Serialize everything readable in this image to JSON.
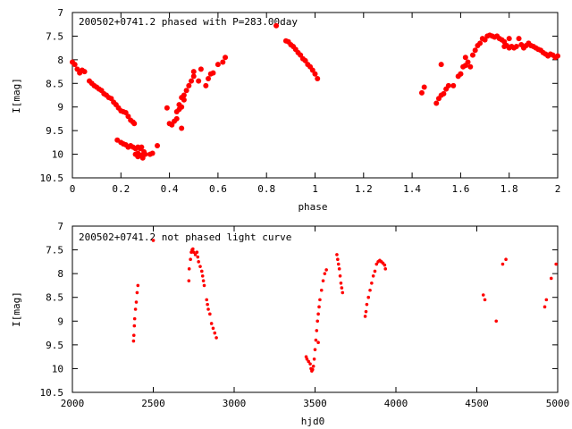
{
  "chart_data": [
    {
      "type": "scatter",
      "title": "200502+0741.2 phased with P=283.00day",
      "xlabel": "phase",
      "ylabel": "I[mag]",
      "xlim": [
        0,
        2
      ],
      "ylim": [
        7,
        10.5
      ],
      "y_inverted": true,
      "xticks": [
        "0",
        "0.2",
        "0.4",
        "0.6",
        "0.8",
        "1",
        "1.2",
        "1.4",
        "1.6",
        "1.8",
        "2"
      ],
      "yticks": [
        "7",
        "7.5",
        "8",
        "8.5",
        "9",
        "9.5",
        "10",
        "10.5"
      ],
      "grid": false,
      "legend": "none",
      "marker_color": "#ff0000",
      "series": [
        {
          "points": [
            [
              0.0,
              8.05
            ],
            [
              0.01,
              8.1
            ],
            [
              0.02,
              8.2
            ],
            [
              0.03,
              8.28
            ],
            [
              0.04,
              8.22
            ],
            [
              0.05,
              8.25
            ],
            [
              0.07,
              8.45
            ],
            [
              0.08,
              8.5
            ],
            [
              0.09,
              8.55
            ],
            [
              0.1,
              8.58
            ],
            [
              0.11,
              8.62
            ],
            [
              0.12,
              8.65
            ],
            [
              0.13,
              8.72
            ],
            [
              0.14,
              8.75
            ],
            [
              0.15,
              8.8
            ],
            [
              0.16,
              8.82
            ],
            [
              0.17,
              8.9
            ],
            [
              0.18,
              8.95
            ],
            [
              0.19,
              9.02
            ],
            [
              0.2,
              9.08
            ],
            [
              0.21,
              9.1
            ],
            [
              0.22,
              9.12
            ],
            [
              0.23,
              9.2
            ],
            [
              0.24,
              9.28
            ],
            [
              0.25,
              9.32
            ],
            [
              0.255,
              9.35
            ],
            [
              0.185,
              9.7
            ],
            [
              0.2,
              9.75
            ],
            [
              0.21,
              9.78
            ],
            [
              0.22,
              9.8
            ],
            [
              0.23,
              9.85
            ],
            [
              0.24,
              9.82
            ],
            [
              0.25,
              9.85
            ],
            [
              0.26,
              9.88
            ],
            [
              0.27,
              9.85
            ],
            [
              0.28,
              9.88
            ],
            [
              0.285,
              9.85
            ],
            [
              0.26,
              10.0
            ],
            [
              0.27,
              10.05
            ],
            [
              0.28,
              10.02
            ],
            [
              0.29,
              10.08
            ],
            [
              0.3,
              10.0
            ],
            [
              0.295,
              9.95
            ],
            [
              0.27,
              9.98
            ],
            [
              0.32,
              10.0
            ],
            [
              0.33,
              9.98
            ],
            [
              0.35,
              9.82
            ],
            [
              0.39,
              9.02
            ],
            [
              0.4,
              9.35
            ],
            [
              0.41,
              9.38
            ],
            [
              0.42,
              9.3
            ],
            [
              0.43,
              9.25
            ],
            [
              0.43,
              9.1
            ],
            [
              0.44,
              9.05
            ],
            [
              0.44,
              8.95
            ],
            [
              0.45,
              9.0
            ],
            [
              0.45,
              8.8
            ],
            [
              0.46,
              8.75
            ],
            [
              0.46,
              8.85
            ],
            [
              0.47,
              8.65
            ],
            [
              0.48,
              8.55
            ],
            [
              0.49,
              8.45
            ],
            [
              0.5,
              8.35
            ],
            [
              0.5,
              8.25
            ],
            [
              0.52,
              8.45
            ],
            [
              0.53,
              8.2
            ],
            [
              0.55,
              8.55
            ],
            [
              0.56,
              8.4
            ],
            [
              0.57,
              8.3
            ],
            [
              0.58,
              8.28
            ],
            [
              0.6,
              8.1
            ],
            [
              0.62,
              8.05
            ],
            [
              0.63,
              7.95
            ],
            [
              0.45,
              9.45
            ],
            [
              0.84,
              7.28
            ],
            [
              0.88,
              7.6
            ],
            [
              0.89,
              7.62
            ],
            [
              0.9,
              7.68
            ],
            [
              0.91,
              7.72
            ],
            [
              0.92,
              7.78
            ],
            [
              0.93,
              7.85
            ],
            [
              0.94,
              7.9
            ],
            [
              0.95,
              7.98
            ],
            [
              0.96,
              8.02
            ],
            [
              0.97,
              8.1
            ],
            [
              0.98,
              8.15
            ],
            [
              0.99,
              8.22
            ],
            [
              1.0,
              8.3
            ],
            [
              1.01,
              8.4
            ],
            [
              1.44,
              8.7
            ],
            [
              1.45,
              8.58
            ],
            [
              1.5,
              8.92
            ],
            [
              1.51,
              8.82
            ],
            [
              1.52,
              8.75
            ],
            [
              1.53,
              8.72
            ],
            [
              1.54,
              8.62
            ],
            [
              1.55,
              8.55
            ],
            [
              1.57,
              8.55
            ],
            [
              1.52,
              8.1
            ],
            [
              1.59,
              8.35
            ],
            [
              1.6,
              8.3
            ],
            [
              1.61,
              8.15
            ],
            [
              1.62,
              8.12
            ],
            [
              1.63,
              8.05
            ],
            [
              1.64,
              8.15
            ],
            [
              1.65,
              7.9
            ],
            [
              1.66,
              7.8
            ],
            [
              1.67,
              7.7
            ],
            [
              1.68,
              7.65
            ],
            [
              1.69,
              7.55
            ],
            [
              1.7,
              7.58
            ],
            [
              1.71,
              7.5
            ],
            [
              1.72,
              7.48
            ],
            [
              1.73,
              7.5
            ],
            [
              1.74,
              7.52
            ],
            [
              1.75,
              7.5
            ],
            [
              1.76,
              7.55
            ],
            [
              1.77,
              7.58
            ],
            [
              1.78,
              7.62
            ],
            [
              1.78,
              7.72
            ],
            [
              1.79,
              7.7
            ],
            [
              1.8,
              7.55
            ],
            [
              1.8,
              7.75
            ],
            [
              1.81,
              7.72
            ],
            [
              1.82,
              7.75
            ],
            [
              1.83,
              7.72
            ],
            [
              1.84,
              7.55
            ],
            [
              1.85,
              7.68
            ],
            [
              1.86,
              7.75
            ],
            [
              1.87,
              7.7
            ],
            [
              1.88,
              7.65
            ],
            [
              1.89,
              7.7
            ],
            [
              1.9,
              7.72
            ],
            [
              1.91,
              7.75
            ],
            [
              1.92,
              7.78
            ],
            [
              1.93,
              7.8
            ],
            [
              1.94,
              7.85
            ],
            [
              1.95,
              7.88
            ],
            [
              1.96,
              7.92
            ],
            [
              1.97,
              7.88
            ],
            [
              1.98,
              7.9
            ],
            [
              1.99,
              7.95
            ],
            [
              2.0,
              7.92
            ],
            [
              1.62,
              7.95
            ],
            [
              1.6,
              8.3
            ]
          ]
        }
      ]
    },
    {
      "type": "scatter",
      "title": "200502+0741.2 not phased light curve",
      "xlabel": "hjd0",
      "ylabel": "I[mag]",
      "xlim": [
        2000,
        5000
      ],
      "ylim": [
        7,
        10.5
      ],
      "y_inverted": true,
      "xticks": [
        "2000",
        "2500",
        "3000",
        "3500",
        "4000",
        "4500",
        "5000"
      ],
      "yticks": [
        "7",
        "7.5",
        "8",
        "8.5",
        "9",
        "9.5",
        "10",
        "10.5"
      ],
      "grid": false,
      "legend": "none",
      "marker_color": "#ff0000",
      "series": [
        {
          "points": [
            [
              2378,
              9.42
            ],
            [
              2380,
              9.3
            ],
            [
              2383,
              9.1
            ],
            [
              2385,
              8.95
            ],
            [
              2390,
              8.75
            ],
            [
              2395,
              8.6
            ],
            [
              2400,
              8.4
            ],
            [
              2405,
              8.25
            ],
            [
              2500,
              7.3
            ],
            [
              2720,
              8.15
            ],
            [
              2722,
              7.9
            ],
            [
              2730,
              7.7
            ],
            [
              2735,
              7.55
            ],
            [
              2740,
              7.5
            ],
            [
              2745,
              7.48
            ],
            [
              2750,
              7.55
            ],
            [
              2760,
              7.6
            ],
            [
              2770,
              7.55
            ],
            [
              2775,
              7.65
            ],
            [
              2780,
              7.75
            ],
            [
              2790,
              7.85
            ],
            [
              2800,
              7.95
            ],
            [
              2805,
              8.05
            ],
            [
              2810,
              8.15
            ],
            [
              2815,
              8.25
            ],
            [
              2830,
              8.55
            ],
            [
              2835,
              8.65
            ],
            [
              2840,
              8.75
            ],
            [
              2850,
              8.85
            ],
            [
              2860,
              9.05
            ],
            [
              2870,
              9.15
            ],
            [
              2880,
              9.25
            ],
            [
              2890,
              9.35
            ],
            [
              3445,
              9.75
            ],
            [
              3450,
              9.8
            ],
            [
              3460,
              9.85
            ],
            [
              3470,
              9.9
            ],
            [
              3475,
              10.0
            ],
            [
              3480,
              10.05
            ],
            [
              3485,
              10.02
            ],
            [
              3490,
              9.95
            ],
            [
              3495,
              9.8
            ],
            [
              3500,
              9.6
            ],
            [
              3505,
              9.4
            ],
            [
              3510,
              9.2
            ],
            [
              3515,
              9.0
            ],
            [
              3520,
              8.85
            ],
            [
              3525,
              8.7
            ],
            [
              3530,
              8.55
            ],
            [
              3540,
              8.35
            ],
            [
              3550,
              8.15
            ],
            [
              3560,
              8.0
            ],
            [
              3570,
              7.92
            ],
            [
              3520,
              9.45
            ],
            [
              3635,
              7.6
            ],
            [
              3640,
              7.7
            ],
            [
              3645,
              7.8
            ],
            [
              3650,
              7.9
            ],
            [
              3655,
              8.05
            ],
            [
              3660,
              8.2
            ],
            [
              3665,
              8.3
            ],
            [
              3670,
              8.4
            ],
            [
              3810,
              8.9
            ],
            [
              3815,
              8.8
            ],
            [
              3820,
              8.65
            ],
            [
              3830,
              8.5
            ],
            [
              3840,
              8.35
            ],
            [
              3850,
              8.2
            ],
            [
              3860,
              8.05
            ],
            [
              3870,
              7.95
            ],
            [
              3880,
              7.8
            ],
            [
              3890,
              7.75
            ],
            [
              3900,
              7.72
            ],
            [
              3910,
              7.75
            ],
            [
              3920,
              7.78
            ],
            [
              3930,
              7.82
            ],
            [
              3935,
              7.9
            ],
            [
              4540,
              8.45
            ],
            [
              4550,
              8.55
            ],
            [
              4620,
              9.0
            ],
            [
              4660,
              7.8
            ],
            [
              4680,
              7.7
            ],
            [
              4920,
              8.7
            ],
            [
              4930,
              8.55
            ],
            [
              4960,
              8.1
            ],
            [
              4990,
              7.8
            ]
          ]
        }
      ]
    }
  ]
}
